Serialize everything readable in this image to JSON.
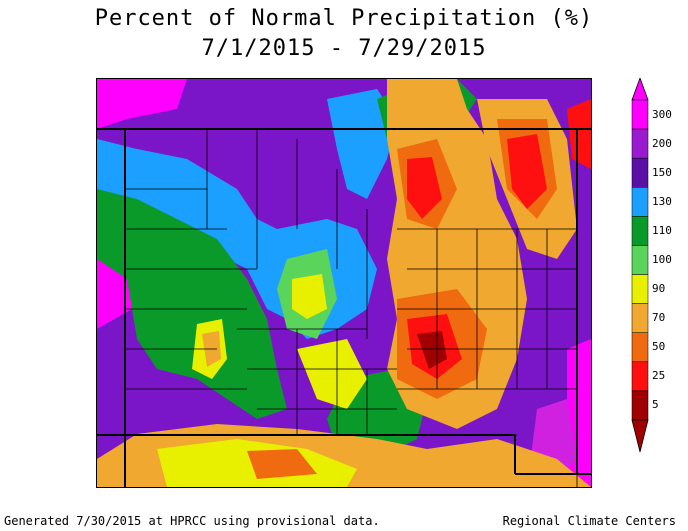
{
  "title": "Percent of Normal Precipitation (%)",
  "date_range": "7/1/2015 - 7/29/2015",
  "legend": [
    {
      "value": "300",
      "color": "#ff00ff"
    },
    {
      "value": "200",
      "color": "#9a1ad0"
    },
    {
      "value": "150",
      "color": "#5b10a8"
    },
    {
      "value": "130",
      "color": "#1ba0ff"
    },
    {
      "value": "110",
      "color": "#0a9a2a"
    },
    {
      "value": "100",
      "color": "#5ad45a"
    },
    {
      "value": "90",
      "color": "#e8f000"
    },
    {
      "value": "70",
      "color": "#f0a830"
    },
    {
      "value": "50",
      "color": "#f06a10"
    },
    {
      "value": "25",
      "color": "#ff1010"
    },
    {
      "value": "5",
      "color": "#a00000"
    }
  ],
  "footer": {
    "generated": "Generated 7/30/2015 at HPRCC using provisional data.",
    "source": "Regional Climate Centers"
  }
}
